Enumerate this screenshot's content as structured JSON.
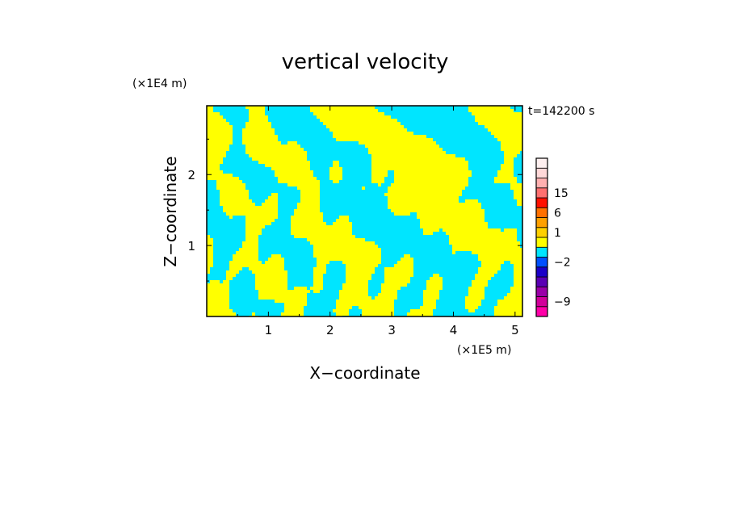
{
  "chart_data": {
    "type": "heatmap",
    "title": "vertical velocity",
    "xlabel": "X−coordinate",
    "ylabel": "Z−coordinate",
    "x_scale_label": "(×1E5 m)",
    "y_scale_label": "(×1E4 m)",
    "time_label": "t=142200 s",
    "xlim": [
      0,
      5.12
    ],
    "ylim": [
      0,
      2.97
    ],
    "x_ticks": [
      1,
      2,
      3,
      4,
      5
    ],
    "y_ticks": [
      1,
      2
    ],
    "x_tick_labels": [
      "1",
      "2",
      "3",
      "4",
      "5"
    ],
    "y_tick_labels": [
      "1",
      "2"
    ],
    "field_colors": {
      "positive": "#ffff00",
      "negative": "#00e5ff"
    },
    "colorbar": {
      "levels": [
        {
          "value": -12,
          "color": "#ff00a8"
        },
        {
          "value": -9,
          "color": "#d2009a"
        },
        {
          "value": -6,
          "color": "#9a00a8"
        },
        {
          "value": -4,
          "color": "#5a00b4"
        },
        {
          "value": -3,
          "color": "#1a00c8"
        },
        {
          "value": -2,
          "color": "#0050ff"
        },
        {
          "value": -1,
          "color": "#00e5ff"
        },
        {
          "value": 0,
          "color": "#ffff00"
        },
        {
          "value": 1,
          "color": "#ffd000"
        },
        {
          "value": 2,
          "color": "#ffa000"
        },
        {
          "value": 4,
          "color": "#ff7000"
        },
        {
          "value": 6,
          "color": "#ff1000"
        },
        {
          "value": 9,
          "color": "#ff7070"
        },
        {
          "value": 12,
          "color": "#ffb0b0"
        },
        {
          "value": 15,
          "color": "#ffd8d8"
        },
        {
          "value": 20,
          "color": "#fff0f0"
        }
      ],
      "tick_labels": [
        "15",
        "6",
        "1",
        "−2",
        "−9"
      ]
    }
  }
}
